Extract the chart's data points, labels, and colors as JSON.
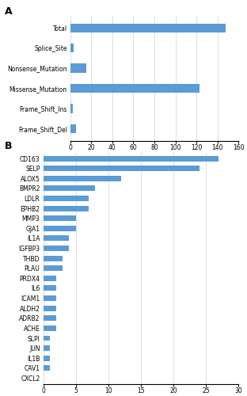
{
  "panel_A": {
    "categories": [
      "Total",
      "Splice_Site",
      "Nonsense_Mutation",
      "Missense_Mutation",
      "Frame_Shift_Ins",
      "Frame_Shift_Del"
    ],
    "values": [
      148,
      3,
      15,
      123,
      2,
      5
    ],
    "xlim": [
      0,
      160
    ],
    "xticks": [
      0,
      20,
      40,
      60,
      80,
      100,
      120,
      140,
      160
    ],
    "bar_color": "#5B9BD5",
    "bar_height": 0.45
  },
  "panel_B": {
    "categories": [
      "CD163",
      "SELP",
      "ALOX5",
      "BMPR2",
      "LDLR",
      "EPHB2",
      "MMP3",
      "GJA1",
      "IL1A",
      "IGFBP3",
      "THBD",
      "PLAU",
      "PRDX4",
      "IL6",
      "ICAM1",
      "ALDH2",
      "ADRB2",
      "ACHE",
      "SLPI",
      "JUN",
      "IL1B",
      "CAV1",
      "CXCL2"
    ],
    "values": [
      27,
      24,
      12,
      8,
      7,
      7,
      5,
      5,
      4,
      4,
      3,
      3,
      2,
      2,
      2,
      2,
      2,
      2,
      1,
      1,
      1,
      1,
      0
    ],
    "xlim": [
      0,
      30
    ],
    "xticks": [
      0,
      5,
      10,
      15,
      20,
      25,
      30
    ],
    "bar_color": "#5B9BD5",
    "bar_height": 0.55
  },
  "label_A": "A",
  "label_B": "B",
  "label_fontsize": 9,
  "tick_fontsize": 5.5,
  "background_color": "#ffffff",
  "grid_color": "#d0d0d0"
}
